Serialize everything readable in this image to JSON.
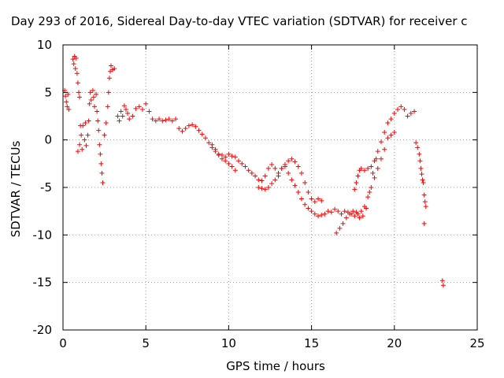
{
  "chart_data": {
    "type": "scatter",
    "title": "Day 293 of 2016, Sidereal Day-to-day VTEC variation (SDTVAR) for receiver c",
    "xlabel": "GPS time / hours",
    "ylabel": "SDTVAR / TECUs",
    "xlim": [
      0,
      25
    ],
    "ylim": [
      -20,
      10
    ],
    "xticks": [
      "0",
      "5",
      "10",
      "15",
      "20",
      "25"
    ],
    "yticks": [
      "10",
      "5",
      "0",
      "-5",
      "-10",
      "-15",
      "-20"
    ],
    "grid": true,
    "marker": "+",
    "color": "#ff0000",
    "series": [
      {
        "values": [
          [
            0.1,
            5.2
          ],
          [
            0.15,
            4.6
          ],
          [
            0.2,
            4.0
          ],
          [
            0.25,
            3.5
          ],
          [
            0.3,
            4.8
          ],
          [
            0.35,
            3.2
          ],
          [
            0.6,
            8.5
          ],
          [
            0.65,
            8.0
          ],
          [
            0.7,
            8.8
          ],
          [
            0.75,
            7.5
          ],
          [
            0.8,
            8.6
          ],
          [
            0.85,
            7.0
          ],
          [
            0.9,
            6.0
          ],
          [
            0.95,
            5.0
          ],
          [
            1.0,
            4.5
          ],
          [
            0.9,
            -1.2
          ],
          [
            1.0,
            -0.5
          ],
          [
            1.05,
            1.5
          ],
          [
            1.1,
            0.5
          ],
          [
            1.15,
            -1.0
          ],
          [
            1.2,
            1.5
          ],
          [
            1.3,
            0.0
          ],
          [
            1.35,
            1.8
          ],
          [
            1.4,
            -0.6
          ],
          [
            1.5,
            0.5
          ],
          [
            1.55,
            2.0
          ],
          [
            1.6,
            3.8
          ],
          [
            1.65,
            5.0
          ],
          [
            1.7,
            4.2
          ],
          [
            1.8,
            5.2
          ],
          [
            1.85,
            4.5
          ],
          [
            1.9,
            3.5
          ],
          [
            2.0,
            4.8
          ],
          [
            2.05,
            3.0
          ],
          [
            2.1,
            2.0
          ],
          [
            2.15,
            1.0
          ],
          [
            2.2,
            -0.5
          ],
          [
            2.25,
            -1.5
          ],
          [
            2.3,
            -2.5
          ],
          [
            2.35,
            -3.5
          ],
          [
            2.4,
            -4.5
          ],
          [
            2.5,
            0.5
          ],
          [
            2.6,
            1.8
          ],
          [
            2.7,
            3.5
          ],
          [
            2.75,
            5.0
          ],
          [
            2.8,
            6.5
          ],
          [
            2.85,
            7.2
          ],
          [
            2.9,
            7.8
          ],
          [
            3.0,
            7.4
          ],
          [
            3.1,
            7.5
          ],
          [
            3.3,
            2.5
          ],
          [
            3.4,
            2.0
          ],
          [
            3.5,
            3.0
          ],
          [
            3.6,
            2.5
          ],
          [
            3.7,
            3.6
          ],
          [
            3.8,
            3.2
          ],
          [
            3.9,
            2.8
          ],
          [
            4.0,
            2.2
          ],
          [
            4.2,
            2.5
          ],
          [
            4.4,
            3.3
          ],
          [
            4.6,
            3.5
          ],
          [
            4.8,
            3.2
          ],
          [
            5.0,
            3.8
          ],
          [
            5.2,
            3.0
          ],
          [
            5.4,
            2.2
          ],
          [
            5.6,
            2.0
          ],
          [
            5.8,
            2.2
          ],
          [
            6.0,
            2.0
          ],
          [
            6.2,
            2.1
          ],
          [
            6.4,
            2.2
          ],
          [
            6.6,
            2.0
          ],
          [
            6.8,
            2.2
          ],
          [
            7.0,
            1.2
          ],
          [
            7.2,
            0.9
          ],
          [
            7.4,
            1.2
          ],
          [
            7.6,
            1.5
          ],
          [
            7.8,
            1.6
          ],
          [
            8.0,
            1.4
          ],
          [
            8.2,
            1.0
          ],
          [
            8.4,
            0.6
          ],
          [
            8.6,
            0.2
          ],
          [
            8.8,
            -0.3
          ],
          [
            9.0,
            -0.8
          ],
          [
            9.2,
            -1.2
          ],
          [
            9.4,
            -1.5
          ],
          [
            9.6,
            -1.6
          ],
          [
            9.8,
            -1.8
          ],
          [
            10.0,
            -1.5
          ],
          [
            10.2,
            -1.7
          ],
          [
            10.4,
            -1.8
          ],
          [
            10.6,
            -2.2
          ],
          [
            10.8,
            -2.5
          ],
          [
            11.0,
            -2.8
          ],
          [
            11.2,
            -3.2
          ],
          [
            11.4,
            -3.5
          ],
          [
            11.6,
            -3.8
          ],
          [
            11.8,
            -4.2
          ],
          [
            12.0,
            -4.3
          ],
          [
            12.2,
            -3.8
          ],
          [
            12.4,
            -3.0
          ],
          [
            12.6,
            -2.6
          ],
          [
            12.8,
            -3.0
          ],
          [
            13.0,
            -3.5
          ],
          [
            13.2,
            -3.0
          ],
          [
            13.4,
            -2.6
          ],
          [
            13.6,
            -2.2
          ],
          [
            13.8,
            -2.0
          ],
          [
            14.0,
            -2.3
          ],
          [
            14.2,
            -2.8
          ],
          [
            14.4,
            -3.5
          ],
          [
            14.6,
            -4.5
          ],
          [
            14.8,
            -5.5
          ],
          [
            15.0,
            -6.2
          ],
          [
            15.2,
            -6.5
          ],
          [
            15.4,
            -6.2
          ],
          [
            15.6,
            -6.4
          ],
          [
            9.0,
            -0.5
          ],
          [
            9.2,
            -1.0
          ],
          [
            9.4,
            -1.6
          ],
          [
            9.6,
            -2.0
          ],
          [
            9.8,
            -2.2
          ],
          [
            10.0,
            -2.5
          ],
          [
            10.2,
            -2.8
          ],
          [
            10.4,
            -3.2
          ],
          [
            11.8,
            -5.0
          ],
          [
            12.0,
            -5.1
          ],
          [
            12.2,
            -5.2
          ],
          [
            12.4,
            -5.0
          ],
          [
            12.6,
            -4.6
          ],
          [
            12.8,
            -4.2
          ],
          [
            13.0,
            -3.8
          ],
          [
            13.2,
            -3.0
          ],
          [
            13.4,
            -2.8
          ],
          [
            13.6,
            -3.5
          ],
          [
            13.8,
            -4.2
          ],
          [
            14.0,
            -4.8
          ],
          [
            14.2,
            -5.5
          ],
          [
            14.4,
            -6.2
          ],
          [
            14.6,
            -6.8
          ],
          [
            14.8,
            -7.2
          ],
          [
            15.0,
            -7.5
          ],
          [
            15.2,
            -7.8
          ],
          [
            15.4,
            -8.0
          ],
          [
            15.6,
            -7.9
          ],
          [
            15.8,
            -7.8
          ],
          [
            16.0,
            -7.5
          ],
          [
            16.2,
            -7.6
          ],
          [
            16.4,
            -7.3
          ],
          [
            16.6,
            -7.5
          ],
          [
            16.8,
            -7.8
          ],
          [
            17.0,
            -7.5
          ],
          [
            17.2,
            -7.6
          ],
          [
            17.4,
            -7.8
          ],
          [
            17.6,
            -8.0
          ],
          [
            17.8,
            -7.8
          ],
          [
            18.0,
            -7.5
          ],
          [
            18.2,
            -7.0
          ],
          [
            18.4,
            -6.0
          ],
          [
            16.5,
            -9.8
          ],
          [
            16.7,
            -9.3
          ],
          [
            16.9,
            -8.8
          ],
          [
            17.1,
            -8.2
          ],
          [
            17.3,
            -7.8
          ],
          [
            17.5,
            -7.5
          ],
          [
            17.7,
            -7.6
          ],
          [
            17.9,
            -8.2
          ],
          [
            18.1,
            -8.0
          ],
          [
            18.3,
            -7.2
          ],
          [
            18.5,
            -5.5
          ],
          [
            18.7,
            -3.5
          ],
          [
            18.9,
            -2.0
          ],
          [
            17.6,
            -5.2
          ],
          [
            17.7,
            -4.5
          ],
          [
            17.8,
            -3.8
          ],
          [
            17.9,
            -3.2
          ],
          [
            18.0,
            -3.0
          ],
          [
            18.2,
            -3.2
          ],
          [
            18.4,
            -3.0
          ],
          [
            18.6,
            -2.8
          ],
          [
            18.8,
            -2.2
          ],
          [
            19.0,
            -1.2
          ],
          [
            19.2,
            -0.2
          ],
          [
            19.4,
            0.8
          ],
          [
            19.6,
            1.8
          ],
          [
            19.8,
            2.2
          ],
          [
            20.0,
            2.8
          ],
          [
            20.2,
            3.2
          ],
          [
            20.4,
            3.5
          ],
          [
            20.6,
            3.2
          ],
          [
            20.8,
            2.5
          ],
          [
            21.0,
            2.8
          ],
          [
            21.2,
            3.0
          ],
          [
            18.6,
            -5.0
          ],
          [
            18.8,
            -4.0
          ],
          [
            19.0,
            -3.0
          ],
          [
            19.2,
            -2.0
          ],
          [
            19.4,
            -1.0
          ],
          [
            19.6,
            0.2
          ],
          [
            19.8,
            0.5
          ],
          [
            20.0,
            0.8
          ],
          [
            21.3,
            -0.3
          ],
          [
            21.4,
            -0.8
          ],
          [
            21.5,
            -1.5
          ],
          [
            21.55,
            -2.2
          ],
          [
            21.6,
            -3.0
          ],
          [
            21.65,
            -3.6
          ],
          [
            21.7,
            -4.2
          ],
          [
            21.75,
            -4.5
          ],
          [
            21.8,
            -5.8
          ],
          [
            21.85,
            -6.5
          ],
          [
            21.9,
            -7.0
          ],
          [
            21.8,
            -8.8
          ],
          [
            22.9,
            -14.8
          ],
          [
            22.95,
            -15.3
          ]
        ]
      }
    ]
  }
}
